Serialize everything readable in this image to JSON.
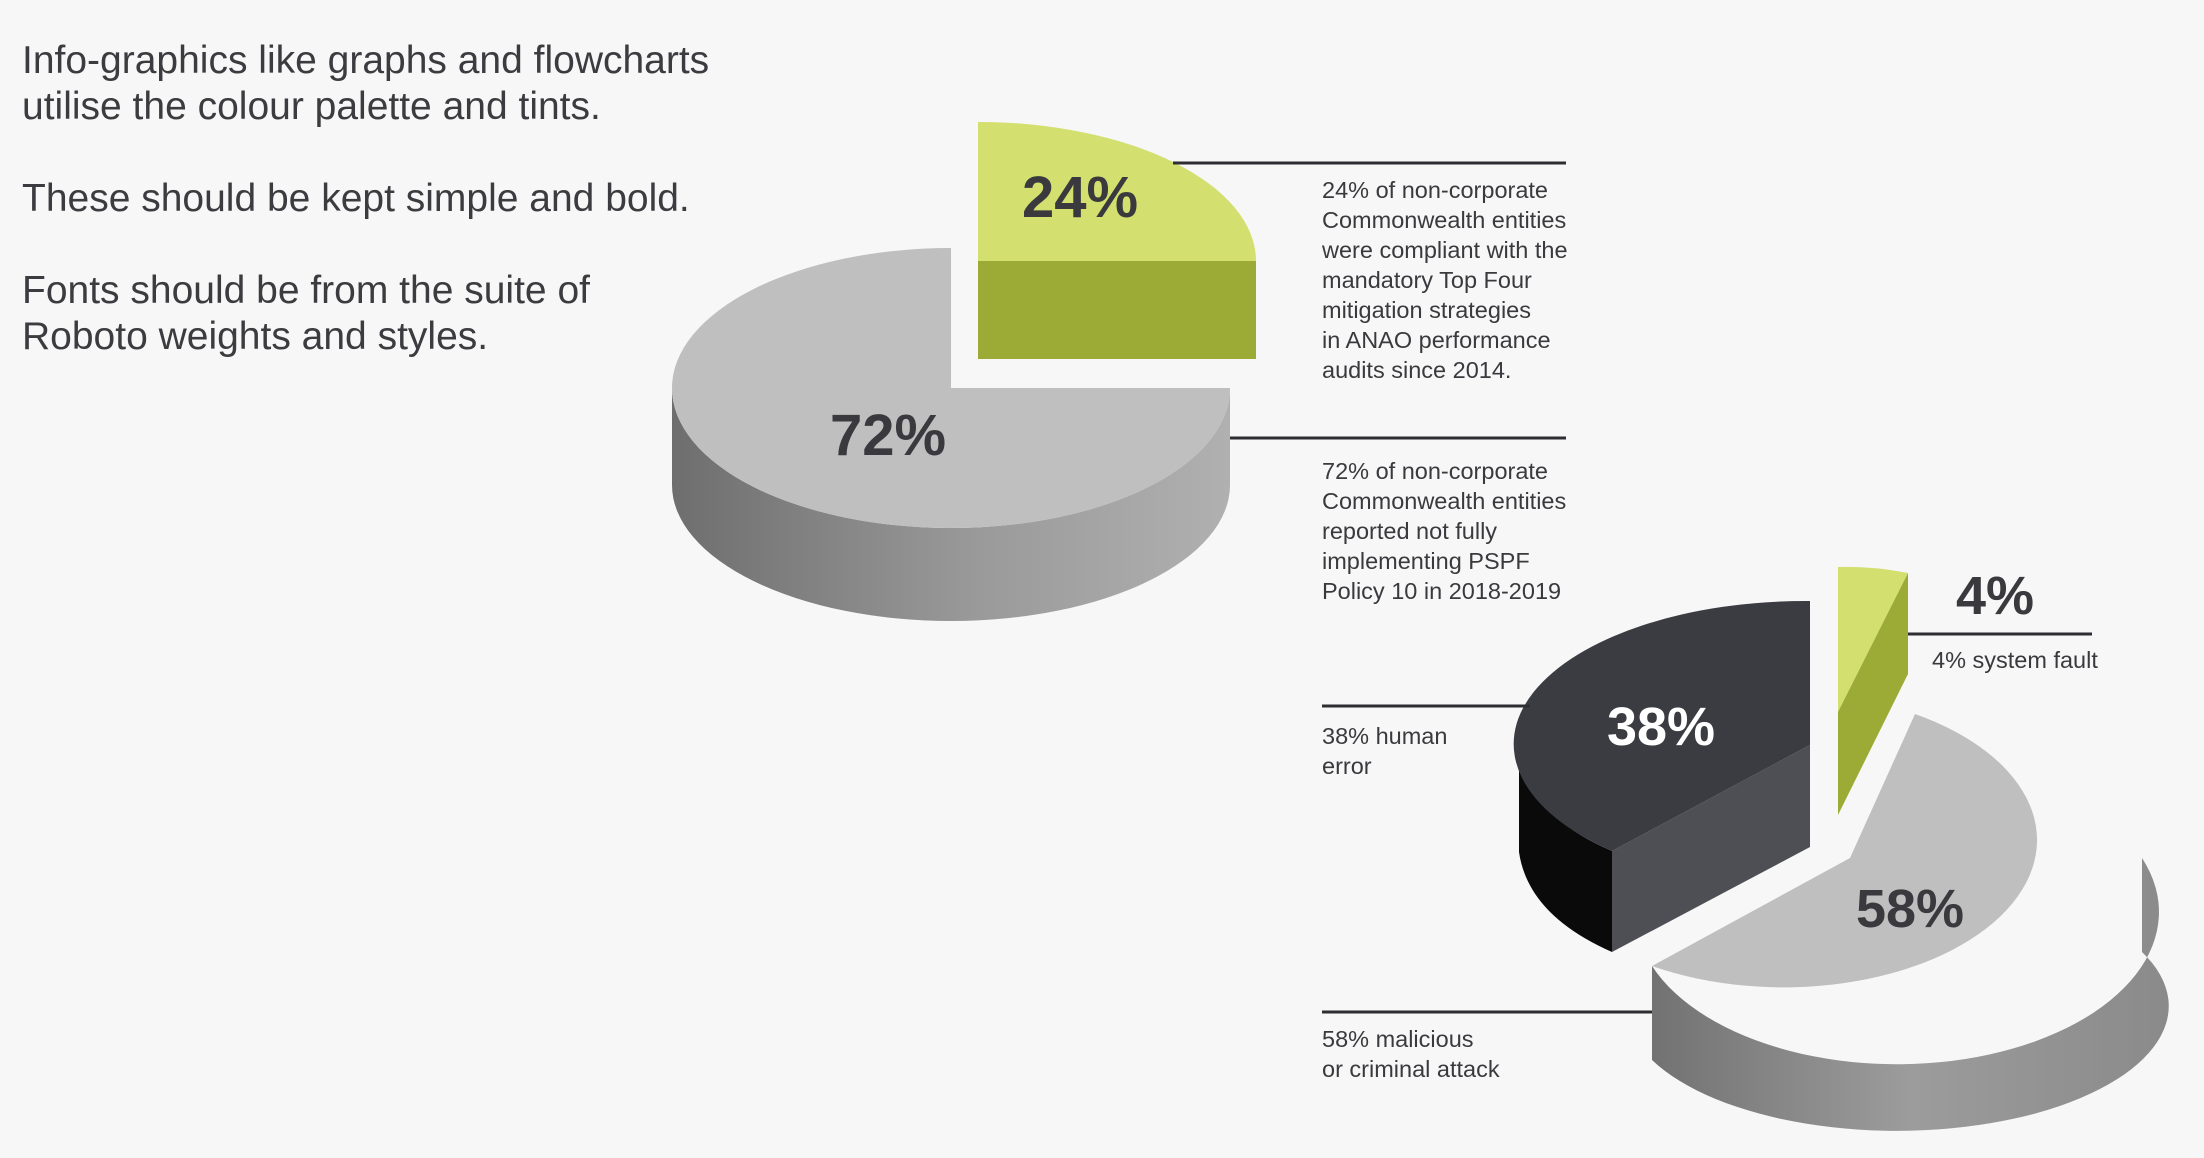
{
  "intro": {
    "paragraph_1": "Info-graphics like graphs and flowcharts\nutilise the colour palette and tints.",
    "paragraph_2": "These should be kept simple and bold.",
    "paragraph_3": "Fonts should be from the suite of\nRoboto weights and styles."
  },
  "colors": {
    "light_green": "#d3df6f",
    "olive_green": "#9cab36",
    "light_grey": "#bfbfbf",
    "mid_grey": "#8a8a8a",
    "charcoal": "#3b3b42",
    "charcoal_side": "#4e4e55",
    "black": "#0a0a0a"
  },
  "chart_data": [
    {
      "type": "pie",
      "style": "3d-exploded",
      "slices": [
        {
          "label": "24%",
          "value": 24,
          "color": "light_green"
        },
        {
          "label": "72%",
          "value": 72,
          "color": "light_grey"
        }
      ],
      "annotations": [
        "24% of non-corporate\nCommonwealth entities\nwere compliant with the\nmandatory Top Four\nmitigation strategies\nin ANAO performance\naudits since 2014.",
        "72% of non-corporate\nCommonwealth entities\nreported not fully\nimplementing PSPF\nPolicy 10 in 2018-2019"
      ]
    },
    {
      "type": "pie",
      "style": "3d-exploded",
      "slices": [
        {
          "label": "4%",
          "value": 4,
          "color": "light_green"
        },
        {
          "label": "38%",
          "value": 38,
          "color": "charcoal"
        },
        {
          "label": "58%",
          "value": 58,
          "color": "light_grey"
        }
      ],
      "annotations": [
        "4% system fault",
        "38% human\nerror",
        "58% malicious\nor criminal attack"
      ]
    }
  ]
}
